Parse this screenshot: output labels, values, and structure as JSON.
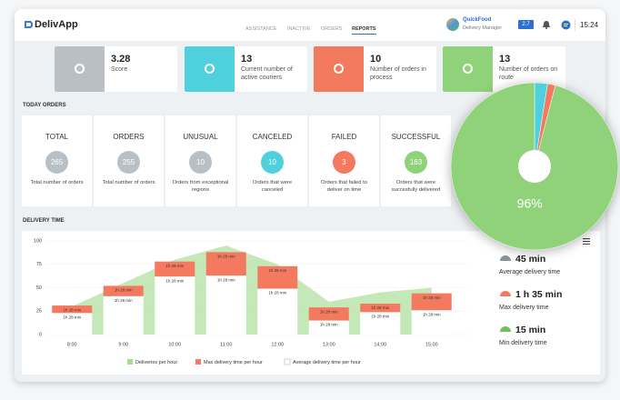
{
  "header": {
    "logo": "DelivApp",
    "nav": [
      "ASSISTANCE",
      "INACTIVE",
      "ORDERS",
      "REPORTS"
    ],
    "user_name": "QuickFood",
    "user_role": "Delivery Manager",
    "badge": "2.7",
    "time": "15:24"
  },
  "kpis": [
    {
      "value": "3.28",
      "label": "Score",
      "color": "#b9c0c5"
    },
    {
      "value": "13",
      "label": "Current number of active couriers",
      "color": "#4fd0dd"
    },
    {
      "value": "10",
      "label": "Number of orders in process",
      "color": "#f47a5f"
    },
    {
      "value": "13",
      "label": "Number of orders on route",
      "color": "#8fd27a"
    }
  ],
  "today_orders": {
    "title": "TODAY ORDERS",
    "items": [
      {
        "title": "TOTAL",
        "value": "265",
        "description": "Total number of orders",
        "color": "#b9c0c5"
      },
      {
        "title": "ORDERS",
        "value": "255",
        "description": "Total number of orders",
        "color": "#b9c0c5"
      },
      {
        "title": "UNUSUAL",
        "value": "10",
        "description": "Orders from exceptional regions",
        "color": "#b9c0c5"
      },
      {
        "title": "CANCELED",
        "value": "10",
        "description": "Orders that were canceled",
        "color": "#4fd0dd"
      },
      {
        "title": "FAILED",
        "value": "3",
        "description": "Orders that failed to deliver on time",
        "color": "#f47a5f"
      },
      {
        "title": "SUCCESSFUL",
        "value": "163",
        "description": "Orders that were succesfully delivered",
        "color": "#8fd27a"
      }
    ]
  },
  "delivery_time": {
    "title": "DELIVERY TIME",
    "stats": [
      {
        "value": "45 min",
        "label": "Average delivery time",
        "color": "#8a9299"
      },
      {
        "value": "1 h 35 min",
        "label": "Max delivery time",
        "color": "#f47a5f"
      },
      {
        "value": "15 min",
        "label": "Min delivery time",
        "color": "#6cc25a"
      }
    ]
  },
  "chart_data": [
    {
      "type": "pie",
      "slices": [
        {
          "value": 2.5,
          "color": "#4fd0dd"
        },
        {
          "value": 1.5,
          "color": "#f47a5f"
        },
        {
          "value": 96,
          "color": "#8fd27a",
          "label": "96%"
        }
      ]
    },
    {
      "type": "bar",
      "categories": [
        "8:00",
        "9:00",
        "10:00",
        "11:00",
        "12:00",
        "13:00",
        "14:00",
        "15:00"
      ],
      "ylim": [
        0,
        100
      ],
      "yticks": [
        0,
        25,
        50,
        75,
        100
      ],
      "grid": true,
      "series": [
        {
          "name": "Deliveries per hour",
          "type": "area",
          "color": "#a6dc93",
          "values": [
            30,
            55,
            80,
            95,
            75,
            35,
            45,
            50
          ]
        },
        {
          "name": "Max delivery time per hour",
          "color": "#f47a5f",
          "values": [
            8,
            11,
            16,
            25,
            24,
            14,
            9,
            18
          ],
          "labels": [
            "1h 28 min",
            "1h 28 min",
            "1h 28 min",
            "1h 28 min",
            "1h 28 min",
            "1h 28 min",
            "1h 28 min",
            "1h 28 min"
          ]
        },
        {
          "name": "Average delivery time per hour",
          "color": "#ffffff",
          "values": [
            23,
            41,
            62,
            63,
            49,
            15,
            24,
            26
          ],
          "labels": [
            "1h 28 min",
            "1h 28 min",
            "1h 28 min",
            "1h 28 min",
            "1h 28 min",
            "1h 28 min",
            "1h 28 min",
            "1h 28 min"
          ]
        }
      ]
    }
  ]
}
